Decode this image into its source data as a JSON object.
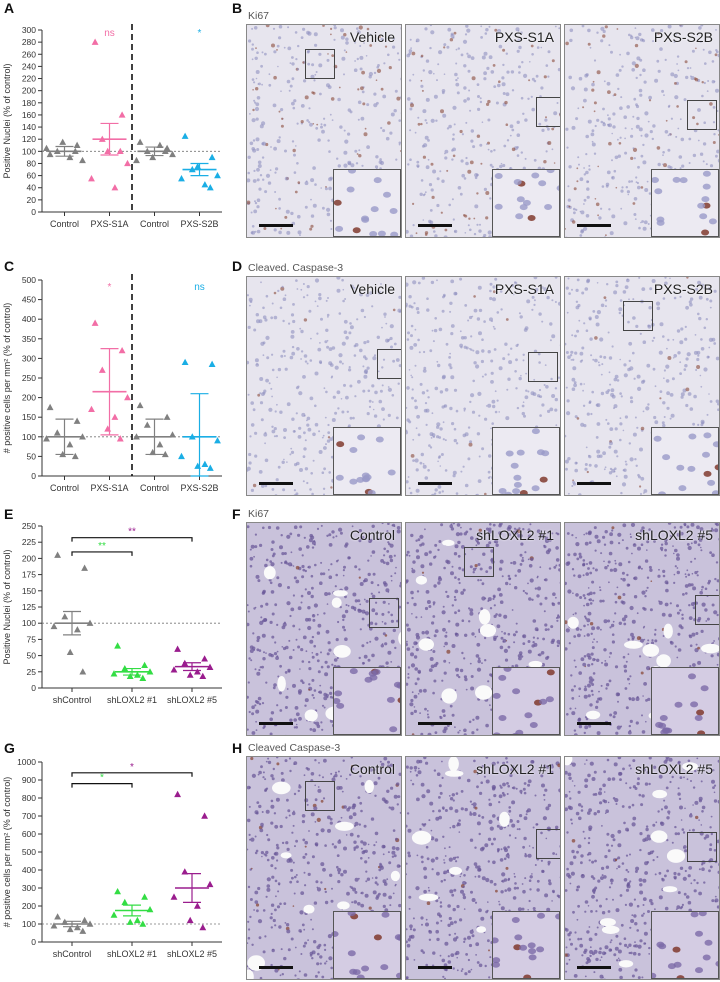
{
  "panel_letters": {
    "A": "A",
    "B": "B",
    "C": "C",
    "D": "D",
    "E": "E",
    "F": "F",
    "G": "G",
    "H": "H"
  },
  "chart_data": [
    {
      "id": "A",
      "type": "scatter",
      "ylabel": "Positive Nuclei (% of control)",
      "ylim": [
        0,
        300
      ],
      "yticks": [
        0,
        20,
        40,
        60,
        80,
        100,
        120,
        140,
        160,
        180,
        200,
        220,
        240,
        260,
        280,
        300
      ],
      "categories": [
        "Control",
        "PXS-S1A",
        "Control",
        "PXS-S2B"
      ],
      "reference_line": 100,
      "divider_after": 2,
      "groups": [
        {
          "values": [
            95,
            110,
            100,
            85,
            105,
            90,
            115,
            100
          ],
          "mean": 100,
          "sem": 8,
          "color": "#808080",
          "marker": "triangle"
        },
        {
          "values": [
            280,
            160,
            120,
            80,
            55,
            40,
            100,
            100
          ],
          "mean": 120,
          "sem": 26,
          "color": "#f26ea6",
          "marker": "triangle"
        },
        {
          "values": [
            115,
            105,
            100,
            95,
            85,
            110,
            90,
            100
          ],
          "mean": 100,
          "sem": 7,
          "color": "#808080",
          "marker": "triangle"
        },
        {
          "values": [
            125,
            90,
            70,
            60,
            55,
            45,
            75,
            40
          ],
          "mean": 70,
          "sem": 10,
          "color": "#1aaee5",
          "marker": "triangle"
        }
      ],
      "annotations": [
        {
          "group": 1,
          "text": "ns",
          "y": 290,
          "color": "#f26ea6"
        },
        {
          "group": 3,
          "text": "*",
          "y": 290,
          "color": "#1aaee5"
        }
      ]
    },
    {
      "id": "C",
      "type": "scatter",
      "ylabel": "# positive cells per mm² (% of control)",
      "ylim": [
        0,
        500
      ],
      "yticks": [
        0,
        50,
        100,
        150,
        200,
        250,
        300,
        350,
        400,
        450,
        500
      ],
      "categories": [
        "Control",
        "PXS-S1A",
        "Control",
        "PXS-S2B"
      ],
      "reference_line": 100,
      "divider_after": 2,
      "groups": [
        {
          "values": [
            175,
            140,
            110,
            100,
            95,
            80,
            55,
            50
          ],
          "mean": 100,
          "sem": 45,
          "color": "#808080",
          "marker": "triangle"
        },
        {
          "values": [
            390,
            320,
            270,
            200,
            170,
            150,
            120,
            95
          ],
          "mean": 215,
          "sem": 110,
          "color": "#f26ea6",
          "marker": "triangle"
        },
        {
          "values": [
            180,
            150,
            130,
            105,
            100,
            80,
            60,
            55
          ],
          "mean": 100,
          "sem": 45,
          "color": "#808080",
          "marker": "triangle"
        },
        {
          "values": [
            290,
            285,
            100,
            90,
            50,
            30,
            25,
            20
          ],
          "mean": 100,
          "sem": 110,
          "color": "#1aaee5",
          "marker": "triangle"
        }
      ],
      "annotations": [
        {
          "group": 1,
          "text": "*",
          "y": 475,
          "color": "#f26ea6"
        },
        {
          "group": 3,
          "text": "ns",
          "y": 475,
          "color": "#1aaee5"
        }
      ]
    },
    {
      "id": "E",
      "type": "scatter",
      "ylabel": "Positive Nuclei (% of control)",
      "ylim": [
        0,
        250
      ],
      "yticks": [
        0,
        25,
        50,
        75,
        100,
        125,
        150,
        175,
        200,
        225,
        250
      ],
      "categories": [
        "shControl",
        "shLOXL2 #1",
        "shLOXL2 #5"
      ],
      "reference_line": 100,
      "groups": [
        {
          "values": [
            205,
            185,
            110,
            100,
            95,
            90,
            55,
            25
          ],
          "mean": 100,
          "sem": 18,
          "color": "#808080",
          "marker": "triangle"
        },
        {
          "values": [
            65,
            35,
            30,
            25,
            22,
            20,
            18,
            15
          ],
          "mean": 25,
          "sem": 5,
          "color": "#33dd44",
          "marker": "triangle"
        },
        {
          "values": [
            60,
            45,
            38,
            32,
            28,
            25,
            20,
            18
          ],
          "mean": 33,
          "sem": 6,
          "color": "#9a1d8e",
          "marker": "triangle"
        }
      ],
      "brackets": [
        {
          "from": 0,
          "to": 1,
          "y": 210,
          "text": "**",
          "color": "#33dd44"
        },
        {
          "from": 0,
          "to": 2,
          "y": 232,
          "text": "**",
          "color": "#9a1d8e"
        }
      ]
    },
    {
      "id": "G",
      "type": "scatter",
      "ylabel": "# positive cells per mm² (% of control)",
      "ylim": [
        0,
        1000
      ],
      "yticks": [
        0,
        100,
        200,
        300,
        400,
        500,
        600,
        700,
        800,
        900,
        1000
      ],
      "categories": [
        "shControl",
        "shLOXL2 #1",
        "shLOXL2 #5"
      ],
      "reference_line": 100,
      "groups": [
        {
          "values": [
            140,
            120,
            110,
            100,
            90,
            80,
            70,
            60
          ],
          "mean": 100,
          "sem": 15,
          "color": "#808080",
          "marker": "triangle"
        },
        {
          "values": [
            280,
            250,
            220,
            180,
            150,
            120,
            110,
            100
          ],
          "mean": 175,
          "sem": 30,
          "color": "#33dd44",
          "marker": "triangle"
        },
        {
          "values": [
            820,
            700,
            390,
            320,
            250,
            200,
            120,
            80
          ],
          "mean": 300,
          "sem": 80,
          "color": "#9a1d8e",
          "marker": "triangle"
        }
      ],
      "brackets": [
        {
          "from": 0,
          "to": 1,
          "y": 880,
          "text": "*",
          "color": "#33dd44"
        },
        {
          "from": 0,
          "to": 2,
          "y": 940,
          "text": "*",
          "color": "#9a1d8e"
        }
      ]
    }
  ],
  "micrographs": [
    {
      "id": "B",
      "title": "Ki67",
      "tone": "light",
      "labels": [
        "Vehicle",
        "PXS-S1A",
        "PXS-S2B"
      ]
    },
    {
      "id": "D",
      "title": "Cleaved. Caspase-3",
      "tone": "light",
      "labels": [
        "Vehicle",
        "PXS-S1A",
        "PXS-S2B"
      ]
    },
    {
      "id": "F",
      "title": "Ki67",
      "tone": "dense",
      "labels": [
        "Control",
        "shLOXL2 #1",
        "shLOXL2 #5"
      ]
    },
    {
      "id": "H",
      "title": "Cleaved Caspase-3",
      "tone": "dense",
      "labels": [
        "Control",
        "shLOXL2 #1",
        "shLOXL2 #5"
      ]
    }
  ]
}
